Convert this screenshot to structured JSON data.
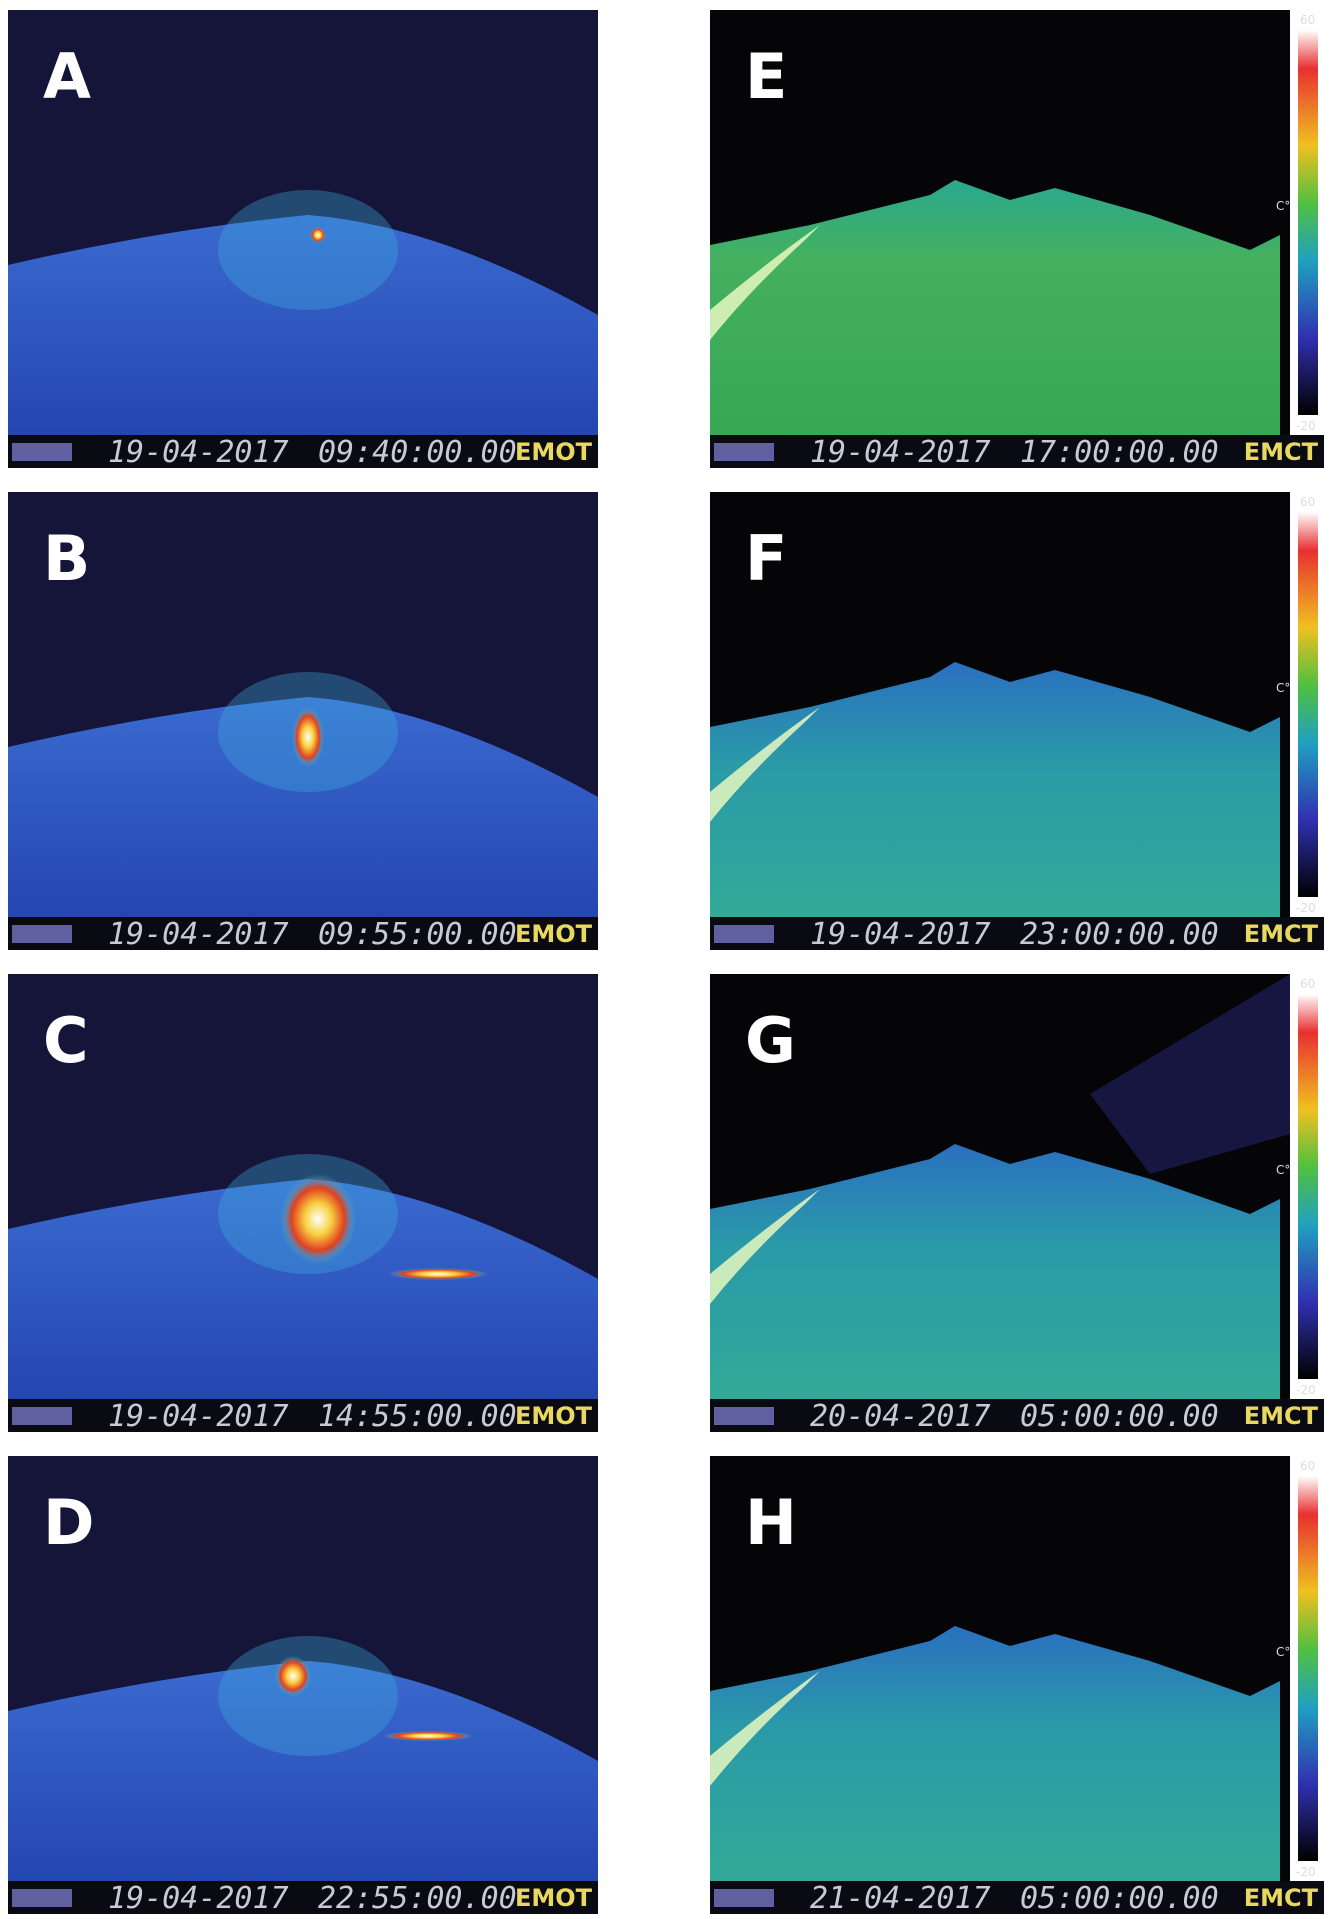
{
  "panels": [
    {
      "letter": "A",
      "date": "19-04-2017",
      "time": "09:40:00.00",
      "camera": "EMOT"
    },
    {
      "letter": "B",
      "date": "19-04-2017",
      "time": "09:55:00.00",
      "camera": "EMOT"
    },
    {
      "letter": "C",
      "date": "19-04-2017",
      "time": "14:55:00.00",
      "camera": "EMOT"
    },
    {
      "letter": "D",
      "date": "19-04-2017",
      "time": "22:55:00.00",
      "camera": "EMOT"
    },
    {
      "letter": "E",
      "date": "19-04-2017",
      "time": "17:00:00.00",
      "camera": "EMCT"
    },
    {
      "letter": "F",
      "date": "19-04-2017",
      "time": "23:00:00.00",
      "camera": "EMCT"
    },
    {
      "letter": "G",
      "date": "20-04-2017",
      "time": "05:00:00.00",
      "camera": "EMCT"
    },
    {
      "letter": "H",
      "date": "21-04-2017",
      "time": "05:00:00.00",
      "camera": "EMCT"
    }
  ],
  "color_scale": {
    "max": "60",
    "unit": "C°",
    "min": "-20"
  }
}
